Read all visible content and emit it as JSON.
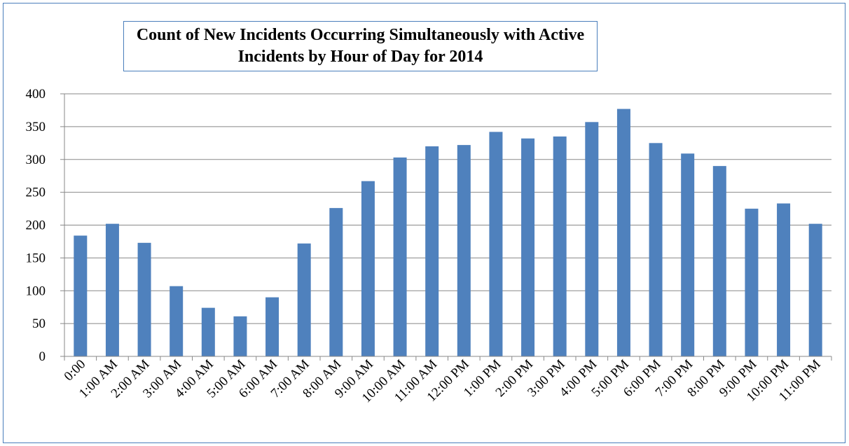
{
  "chart_data": {
    "type": "bar",
    "title": "Count of New Incidents Occurring Simultaneously with Active\nIncidents by Hour of Day for 2014",
    "xlabel": "",
    "ylabel": "",
    "categories": [
      "0:00",
      "1:00 AM",
      "2:00 AM",
      "3:00 AM",
      "4:00 AM",
      "5:00 AM",
      "6:00 AM",
      "7:00 AM",
      "8:00 AM",
      "9:00 AM",
      "10:00 AM",
      "11:00 AM",
      "12:00 PM",
      "1:00 PM",
      "2:00 PM",
      "3:00 PM",
      "4:00 PM",
      "5:00 PM",
      "6:00 PM",
      "7:00 PM",
      "8:00 PM",
      "9:00 PM",
      "10:00 PM",
      "11:00 PM"
    ],
    "values": [
      184,
      202,
      173,
      107,
      74,
      61,
      90,
      172,
      226,
      267,
      303,
      320,
      322,
      342,
      332,
      335,
      357,
      377,
      325,
      309,
      290,
      225,
      233,
      202
    ],
    "ylim": [
      0,
      400
    ],
    "yticks": [
      "0",
      "50",
      "100",
      "150",
      "200",
      "250",
      "300",
      "350",
      "400"
    ],
    "grid": true,
    "legend": "none",
    "bar_color": "#4f81bd",
    "grid_color": "#888888",
    "border_color": "#4a7ebb"
  }
}
